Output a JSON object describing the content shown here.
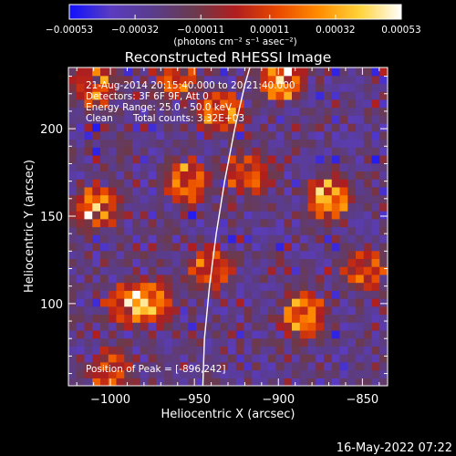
{
  "chart_data": {
    "type": "heatmap",
    "title": "Reconstructed RHESSI Image",
    "xlabel": "Heliocentric X (arcsec)",
    "ylabel": "Heliocentric Y (arcsec)",
    "xlim": [
      -1025,
      -835
    ],
    "ylim": [
      53,
      235
    ],
    "xticks": [
      -1000,
      -950,
      -900,
      -850
    ],
    "xtick_labels": [
      "−1000",
      "−950",
      "−900",
      "−850"
    ],
    "yticks": [
      100,
      150,
      200
    ],
    "ytick_labels": [
      "100",
      "150",
      "200"
    ],
    "colorbar": {
      "range": [
        -0.00053,
        0.00053
      ],
      "ticks": [
        -0.00053,
        -0.00032,
        -0.00011,
        0.00011,
        0.00032,
        0.00053
      ],
      "tick_labels": [
        "−0.00053",
        "−0.00032",
        "−0.00011",
        "0.00011",
        "0.00032",
        "0.00053"
      ],
      "units_label": "(photons cm⁻² s⁻¹ asec⁻²)",
      "colormap": [
        "#1010ff",
        "#5a3cc0",
        "#5a3c8c",
        "#6a3a4e",
        "#b01e1e",
        "#e84800",
        "#ff8c00",
        "#ffd33a",
        "#ffffff"
      ]
    },
    "annotations": {
      "time_range": "21-Aug-2014 20:15:40.000 to 20:21:40.000",
      "detectors": "Detectors: 3F 6F 9F, Att 0",
      "energy_range": "Energy Range: 25.0 - 50.0 keV",
      "method": "Clean",
      "total_counts": "Total counts: 3.32E+03",
      "peak": "Position of Peak = [-896,242]"
    },
    "limb_curve": [
      [
        -945,
        53
      ],
      [
        -944,
        80
      ],
      [
        -941,
        110
      ],
      [
        -937,
        140
      ],
      [
        -932,
        170
      ],
      [
        -926,
        200
      ],
      [
        -920,
        225
      ],
      [
        -917,
        235
      ]
    ],
    "grid_size": [
      40,
      40
    ],
    "hot_sources": [
      {
        "x": -870,
        "y": 160,
        "strength": 1.0
      },
      {
        "x": -885,
        "y": 93,
        "strength": 0.95
      },
      {
        "x": -898,
        "y": 228,
        "strength": 0.95
      },
      {
        "x": -1008,
        "y": 155,
        "strength": 0.9
      },
      {
        "x": -955,
        "y": 170,
        "strength": 0.85
      },
      {
        "x": -975,
        "y": 102,
        "strength": 0.85
      },
      {
        "x": -990,
        "y": 100,
        "strength": 0.75
      },
      {
        "x": -935,
        "y": 210,
        "strength": 0.8
      },
      {
        "x": -1010,
        "y": 225,
        "strength": 0.7
      },
      {
        "x": -918,
        "y": 175,
        "strength": 0.7
      },
      {
        "x": -940,
        "y": 120,
        "strength": 0.65
      },
      {
        "x": -848,
        "y": 120,
        "strength": 0.65
      },
      {
        "x": -1000,
        "y": 62,
        "strength": 0.6
      },
      {
        "x": -960,
        "y": 230,
        "strength": 0.75
      }
    ]
  },
  "footer": {
    "timestamp": "16-May-2022 07:22"
  }
}
